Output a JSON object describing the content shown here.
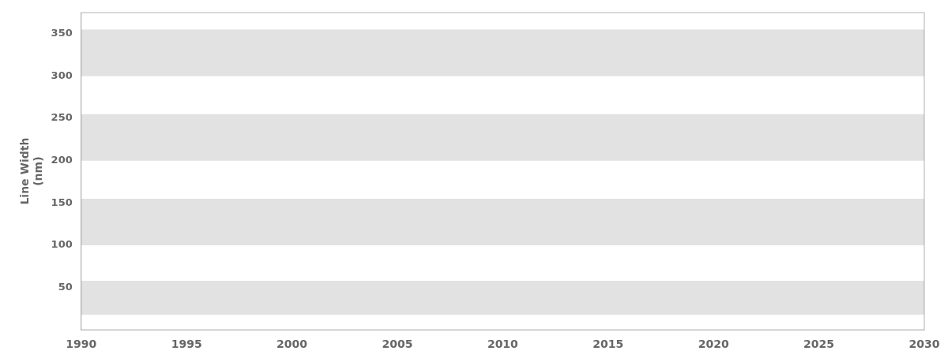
{
  "chart_data": {
    "type": "band",
    "ylabel": [
      "Line Width",
      "(nm)"
    ],
    "bands": [
      {
        "ymin": 300,
        "ymax": 355
      },
      {
        "ymin": 200,
        "ymax": 255
      },
      {
        "ymin": 100,
        "ymax": 155
      },
      {
        "ymin": 18,
        "ymax": 58
      }
    ],
    "color": "#e2e2e2",
    "xlim": [
      1990,
      2030
    ],
    "xticks": [
      1990,
      1995,
      2000,
      2005,
      2010,
      2015,
      2020,
      2025,
      2030
    ],
    "ylim": [
      0,
      375
    ],
    "yticks": [
      50,
      100,
      150,
      200,
      250,
      300,
      350
    ],
    "grid": false
  }
}
